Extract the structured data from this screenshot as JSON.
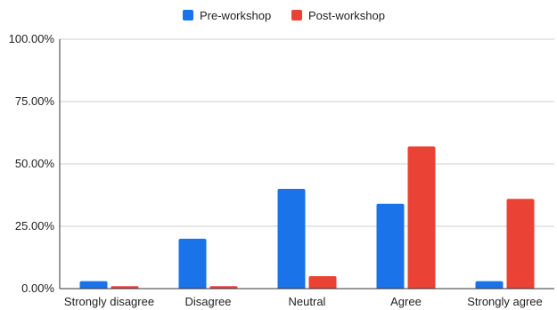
{
  "chart_data": {
    "type": "bar",
    "categories": [
      "Strongly disagree",
      "Disagree",
      "Neutral",
      "Agree",
      "Strongly agree"
    ],
    "series": [
      {
        "name": "Pre-workshop",
        "color": "#1a73e8",
        "values": [
          3,
          20,
          40,
          34,
          3
        ]
      },
      {
        "name": "Post-workshop",
        "color": "#ea4335",
        "values": [
          1,
          1,
          5,
          57,
          36
        ]
      }
    ],
    "ylim": [
      0,
      100
    ],
    "yticks": [
      0,
      25,
      50,
      75,
      100
    ],
    "ytick_labels": [
      "0.00%",
      "25.00%",
      "50.00%",
      "75.00%",
      "100.00%"
    ],
    "grid": true,
    "legend_position": "top"
  }
}
